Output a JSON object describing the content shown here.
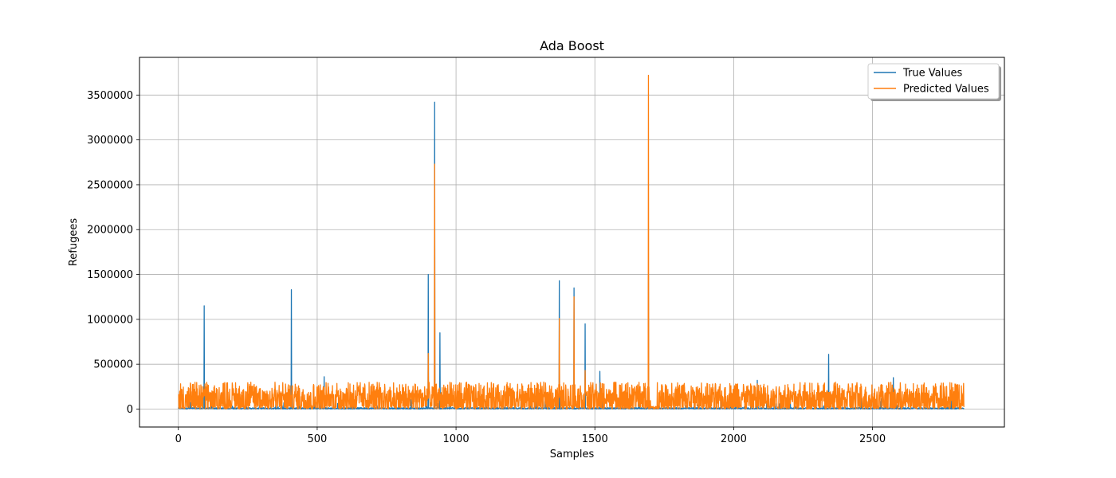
{
  "chart_data": {
    "type": "line",
    "title": "Ada Boost",
    "xlabel": "Samples",
    "ylabel": "Refugees",
    "xlim": [
      -140,
      2975
    ],
    "ylim": [
      -200000,
      3920000
    ],
    "xticks": [
      0,
      500,
      1000,
      1500,
      2000,
      2500
    ],
    "yticks": [
      0,
      500000,
      1000000,
      1500000,
      2000000,
      2500000,
      3000000,
      3500000
    ],
    "grid": true,
    "legend": "top-right",
    "n_samples": 2830,
    "series": [
      {
        "name": "True Values",
        "color": "#1f77b4",
        "baseline": 8000,
        "spikes": [
          {
            "x": 93,
            "y": 1150000
          },
          {
            "x": 407,
            "y": 1330000
          },
          {
            "x": 525,
            "y": 360000
          },
          {
            "x": 900,
            "y": 1500000
          },
          {
            "x": 923,
            "y": 3420000
          },
          {
            "x": 942,
            "y": 850000
          },
          {
            "x": 1372,
            "y": 1430000
          },
          {
            "x": 1425,
            "y": 1350000
          },
          {
            "x": 1465,
            "y": 950000
          },
          {
            "x": 1518,
            "y": 420000
          },
          {
            "x": 1693,
            "y": 1500000
          },
          {
            "x": 2342,
            "y": 610000
          },
          {
            "x": 2575,
            "y": 350000
          },
          {
            "x": 2085,
            "y": 320000
          }
        ]
      },
      {
        "name": "Predicted Values",
        "color": "#ff7f0e",
        "noise_range": [
          0,
          300000
        ],
        "spikes": [
          {
            "x": 900,
            "y": 620000
          },
          {
            "x": 923,
            "y": 2730000
          },
          {
            "x": 1372,
            "y": 1010000
          },
          {
            "x": 1425,
            "y": 1250000
          },
          {
            "x": 1465,
            "y": 430000
          },
          {
            "x": 1693,
            "y": 3720000
          }
        ]
      }
    ]
  }
}
